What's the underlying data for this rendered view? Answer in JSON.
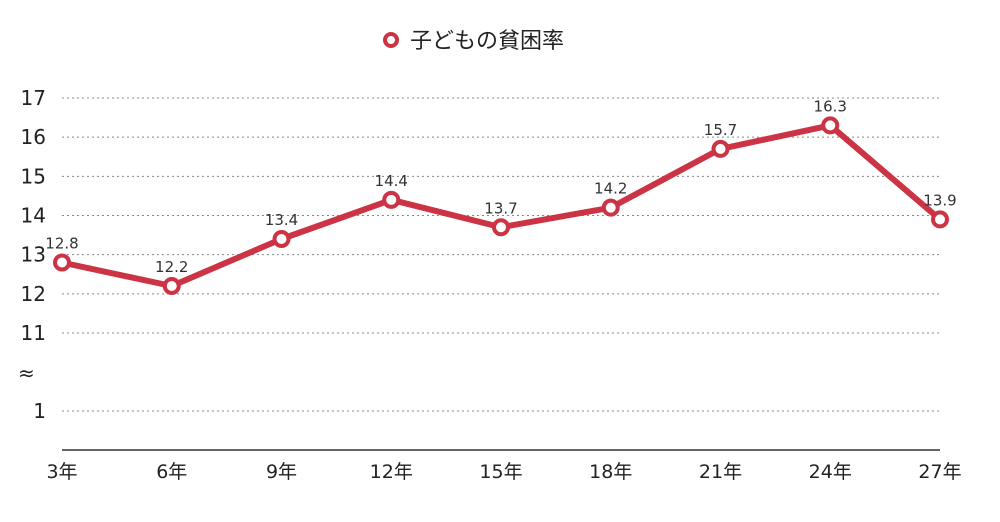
{
  "chart_data": {
    "type": "line",
    "categories": [
      "3年",
      "6年",
      "9年",
      "12年",
      "15年",
      "18年",
      "21年",
      "24年",
      "27年"
    ],
    "series": [
      {
        "name": "子どもの貧困率",
        "values": [
          12.8,
          12.2,
          13.4,
          14.4,
          13.7,
          14.2,
          15.7,
          16.3,
          13.9
        ]
      }
    ],
    "y_tick_labels": [
      "17",
      "16",
      "15",
      "14",
      "13",
      "12",
      "11",
      "1"
    ],
    "axis_break_symbol": "≈",
    "ylim_upper": [
      11,
      17
    ],
    "ylim_lower": [
      0,
      1
    ],
    "grid": true,
    "legend_position": "top-center",
    "series_color": "#cc3344",
    "title": "",
    "xlabel": "",
    "ylabel": ""
  }
}
